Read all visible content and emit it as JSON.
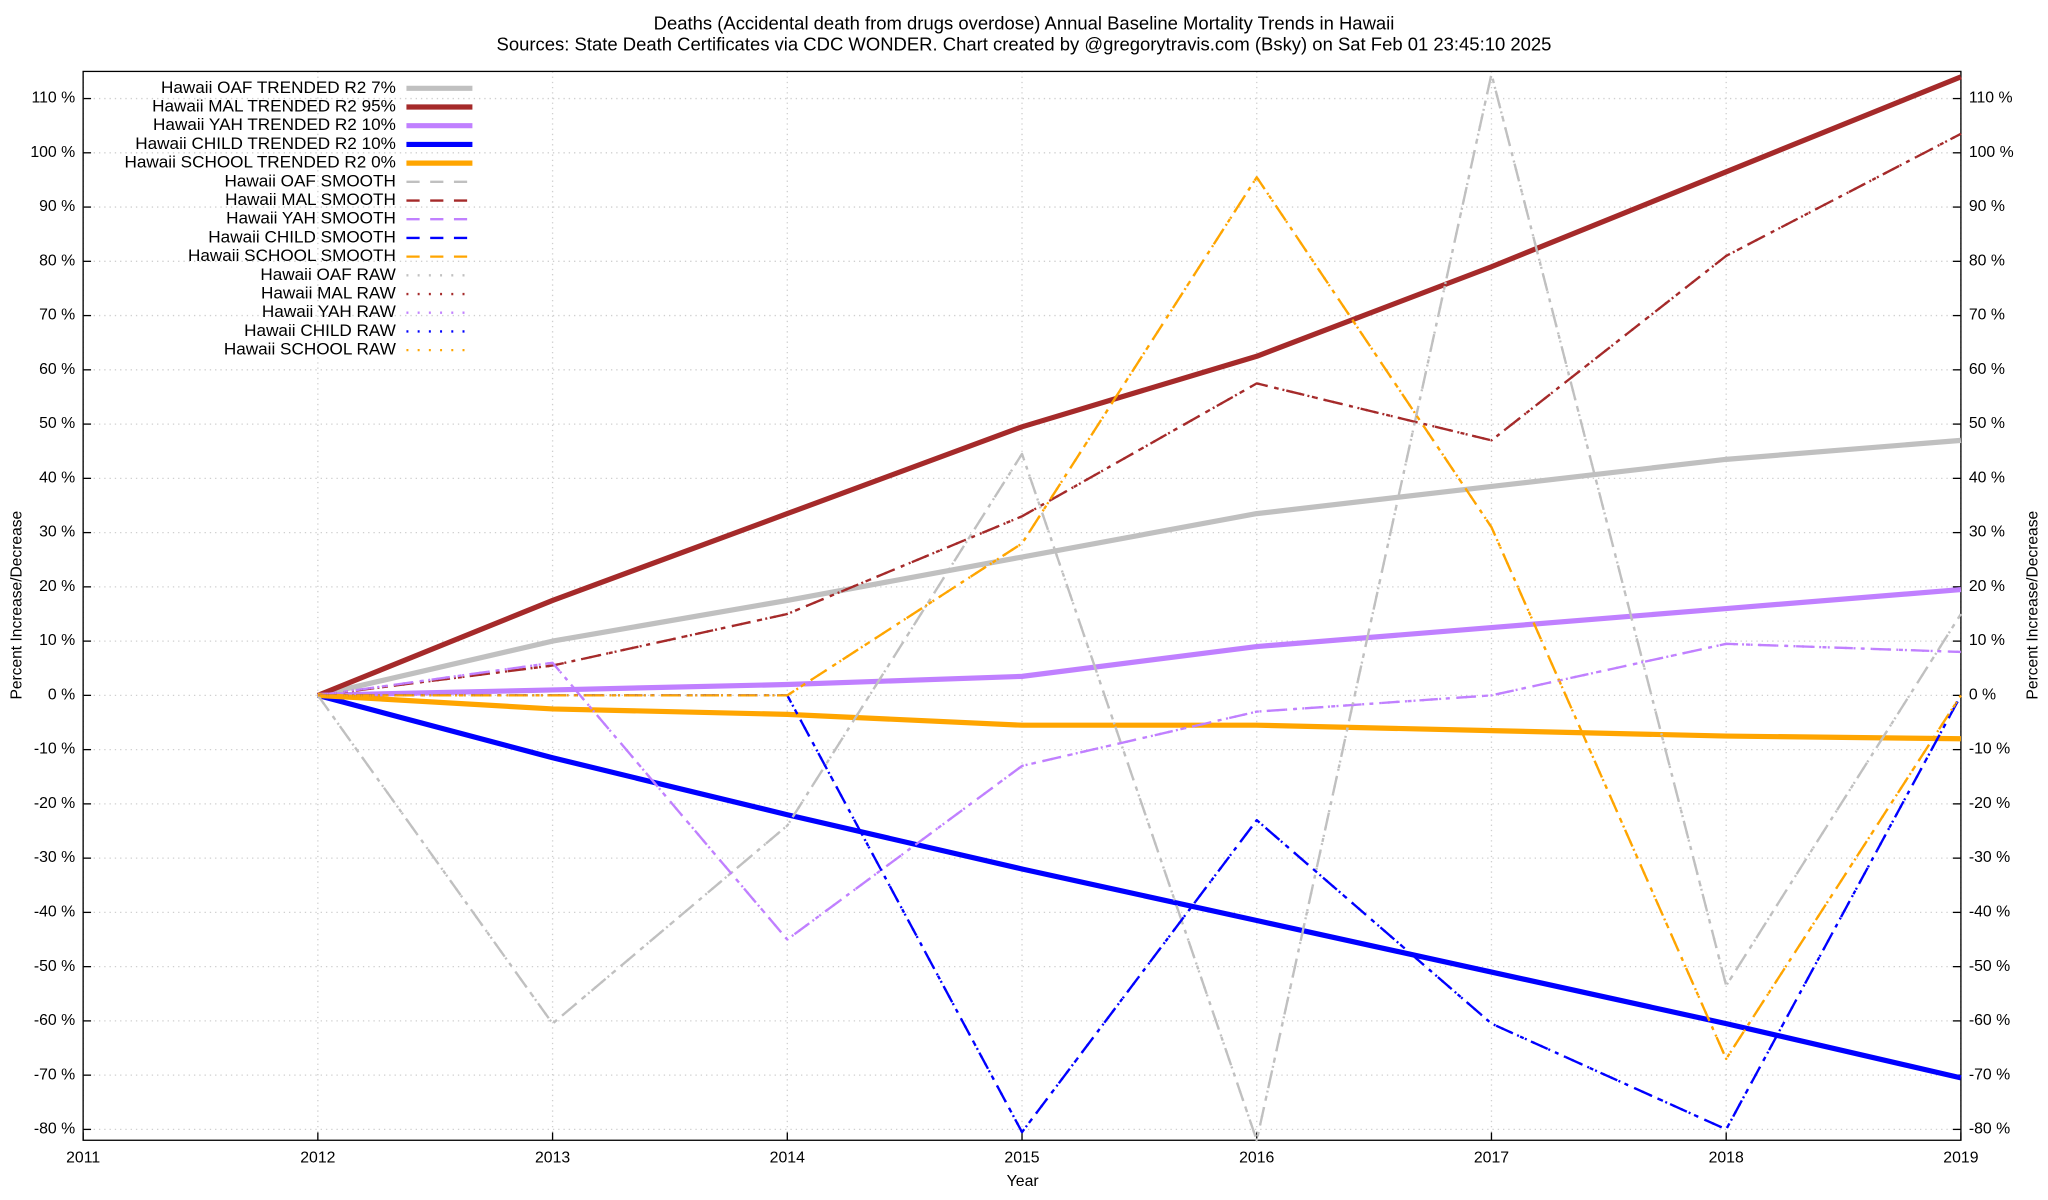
{
  "chart_data": {
    "type": "line",
    "title": "Deaths (Accidental death from drugs overdose)  Annual Baseline Mortality Trends in Hawaii",
    "subtitle": "Sources: State Death Certificates via CDC WONDER.               Chart created by @gregorytravis.com (Bsky) on Sat Feb 01 23:45:10 2025",
    "x_label": "Year",
    "y_label": "Percent Increase/Decrease",
    "y2_label": "Percent Increase/Decrease",
    "x": [
      2012,
      2013,
      2014,
      2015,
      2016,
      2017,
      2018,
      2019
    ],
    "xlim": [
      2011,
      2019
    ],
    "xticks": [
      2011,
      2012,
      2013,
      2014,
      2015,
      2016,
      2017,
      2018,
      2019
    ],
    "ylim": [
      -82,
      115
    ],
    "yticks": [
      {
        "value": -80,
        "label": "-80 %"
      },
      {
        "value": -70,
        "label": "-70 %"
      },
      {
        "value": -60,
        "label": "-60 %"
      },
      {
        "value": -50,
        "label": "-50 %"
      },
      {
        "value": -40,
        "label": "-40 %"
      },
      {
        "value": -30,
        "label": "-30 %"
      },
      {
        "value": -20,
        "label": "-20 %"
      },
      {
        "value": -10,
        "label": "-10 %"
      },
      {
        "value": 0,
        "label": "0 %"
      },
      {
        "value": 10,
        "label": "10 %"
      },
      {
        "value": 20,
        "label": "20 %"
      },
      {
        "value": 30,
        "label": "30 %"
      },
      {
        "value": 40,
        "label": "40 %"
      },
      {
        "value": 50,
        "label": "50 %"
      },
      {
        "value": 60,
        "label": "60 %"
      },
      {
        "value": 70,
        "label": "70 %"
      },
      {
        "value": 80,
        "label": "80 %"
      },
      {
        "value": 90,
        "label": "90 %"
      },
      {
        "value": 100,
        "label": "100 %"
      },
      {
        "value": 110,
        "label": "110 %"
      }
    ],
    "grid": true,
    "legend": "top-left",
    "series": [
      {
        "name": "Hawaii OAF TRENDED R2  7%",
        "color": "#c0c0c0",
        "style": "solid",
        "values": [
          0,
          10,
          17.5,
          25.5,
          33.5,
          38.5,
          43.5,
          47
        ]
      },
      {
        "name": "Hawaii MAL TRENDED R2  95%",
        "color": "#a52a2a",
        "style": "solid",
        "values": [
          0,
          17.5,
          33.5,
          49.5,
          62.5,
          79,
          96.5,
          114
        ]
      },
      {
        "name": "Hawaii YAH TRENDED R2  10%",
        "color": "#c080ff",
        "style": "solid",
        "values": [
          0,
          1,
          2,
          3.5,
          9,
          12.5,
          16,
          19.5
        ]
      },
      {
        "name": "Hawaii CHILD TRENDED R2  10%",
        "color": "#0000ff",
        "style": "solid",
        "values": [
          0,
          -11.5,
          -22,
          -32,
          -41.5,
          -51,
          -60.5,
          -70.5
        ]
      },
      {
        "name": "Hawaii SCHOOL TRENDED R2   0%",
        "color": "#ffa500",
        "style": "solid",
        "values": [
          0,
          -2.5,
          -3.5,
          -5.5,
          -5.5,
          -6.5,
          -7.5,
          -8
        ]
      },
      {
        "name": "Hawaii OAF SMOOTH",
        "color": "#c0c0c0",
        "style": "dashed",
        "values": [
          0,
          -60.5,
          -24,
          44.5,
          -82,
          114.5,
          -53.5,
          15
        ]
      },
      {
        "name": "Hawaii MAL SMOOTH",
        "color": "#a52a2a",
        "style": "dashed",
        "values": [
          0,
          5.5,
          15,
          33,
          57.5,
          47,
          81,
          103.5
        ]
      },
      {
        "name": "Hawaii YAH SMOOTH",
        "color": "#c080ff",
        "style": "dashed",
        "values": [
          0,
          6,
          -45,
          -13,
          -3,
          0,
          9.5,
          8
        ]
      },
      {
        "name": "Hawaii CHILD SMOOTH",
        "color": "#0000ff",
        "style": "dashed",
        "values": [
          0,
          0,
          0,
          -80.5,
          -23,
          -60.5,
          -80,
          0
        ]
      },
      {
        "name": "Hawaii SCHOOL SMOOTH",
        "color": "#ffa500",
        "style": "dashed",
        "values": [
          0,
          0,
          0,
          28,
          95.5,
          31,
          -67,
          0
        ]
      },
      {
        "name": "Hawaii OAF RAW",
        "color": "#c0c0c0",
        "style": "dotted",
        "values": [
          0,
          -60.5,
          -24,
          44.5,
          -82,
          114.5,
          -53.5,
          15
        ]
      },
      {
        "name": "Hawaii MAL RAW",
        "color": "#a52a2a",
        "style": "dotted",
        "values": [
          0,
          5.5,
          15,
          33,
          57.5,
          47,
          81,
          103.5
        ]
      },
      {
        "name": "Hawaii YAH RAW",
        "color": "#c080ff",
        "style": "dotted",
        "values": [
          0,
          6,
          -45,
          -13,
          -3,
          0,
          9.5,
          8
        ]
      },
      {
        "name": "Hawaii CHILD RAW",
        "color": "#0000ff",
        "style": "dotted",
        "values": [
          0,
          0,
          0,
          -80.5,
          -23,
          -60.5,
          -80,
          0
        ]
      },
      {
        "name": "Hawaii SCHOOL RAW",
        "color": "#ffa500",
        "style": "dotted",
        "values": [
          0,
          0,
          0,
          28,
          95.5,
          31,
          -67,
          0
        ]
      }
    ]
  }
}
